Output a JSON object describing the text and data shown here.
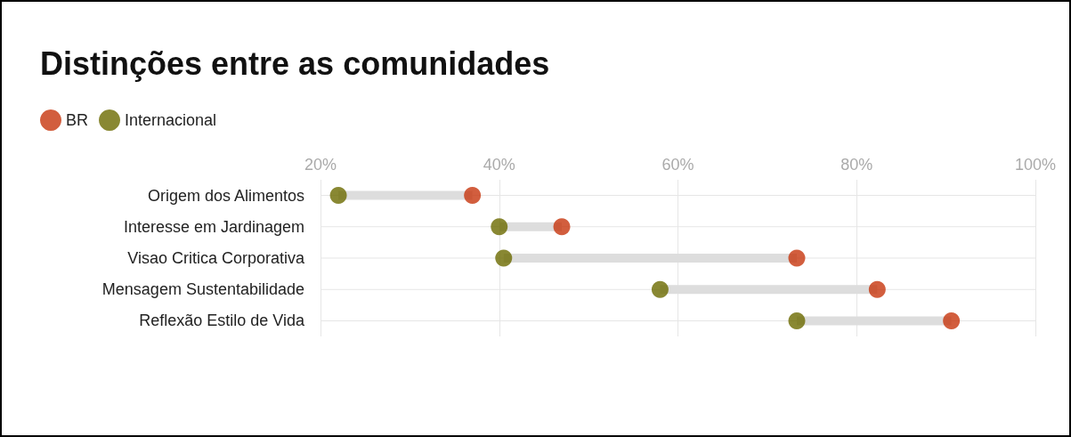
{
  "chart_data": {
    "type": "scatter",
    "title": "Distinções entre as comunidades",
    "orientation": "horizontal",
    "categories": [
      "Origem dos Alimentos",
      "Interesse em Jardinagem",
      "Visao Critica Corporativa",
      "Mensagem Sustentabilidade",
      "Reflexão Estilo de Vida"
    ],
    "series": [
      {
        "name": "BR",
        "color": "#c7360e",
        "values": [
          37,
          47,
          73.3,
          82.3,
          90.6
        ]
      },
      {
        "name": "Internacional",
        "color": "#6b6a00",
        "values": [
          22,
          40,
          40.5,
          58,
          73.3
        ]
      }
    ],
    "xlim": [
      20,
      100
    ],
    "xticks": [
      {
        "value": 20,
        "label": "20%"
      },
      {
        "value": 40,
        "label": "40%"
      },
      {
        "value": 60,
        "label": "60%"
      },
      {
        "value": 80,
        "label": "80%"
      },
      {
        "value": 100,
        "label": "100%"
      }
    ],
    "grid": true,
    "legend": "top left",
    "marker": "circle"
  }
}
